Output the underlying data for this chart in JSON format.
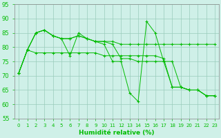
{
  "xlabel": "Humidité relative (%)",
  "xlim": [
    -0.5,
    23.5
  ],
  "ylim": [
    55,
    95
  ],
  "yticks": [
    55,
    60,
    65,
    70,
    75,
    80,
    85,
    90,
    95
  ],
  "xticks": [
    0,
    1,
    2,
    3,
    4,
    5,
    6,
    7,
    8,
    9,
    10,
    11,
    12,
    13,
    14,
    15,
    16,
    17,
    18,
    19,
    20,
    21,
    22,
    23
  ],
  "bg_color": "#cff0e8",
  "grid_color": "#99ccbb",
  "line_color": "#00bb00",
  "lines": [
    {
      "x": [
        0,
        1,
        2,
        3,
        4,
        5,
        6,
        7,
        8,
        9,
        10,
        11,
        12,
        13,
        14,
        15,
        16,
        17,
        18,
        19,
        20,
        21,
        22,
        23
      ],
      "y": [
        71,
        79,
        85,
        86,
        84,
        83,
        77,
        85,
        83,
        82,
        81,
        75,
        75,
        64,
        61,
        89,
        85,
        75,
        66,
        66,
        65,
        65,
        63,
        63
      ]
    },
    {
      "x": [
        0,
        1,
        2,
        3,
        4,
        5,
        6,
        7,
        8,
        9,
        10,
        11,
        12,
        13,
        14,
        15,
        16,
        17,
        18,
        19,
        20,
        21,
        22,
        23
      ],
      "y": [
        71,
        79,
        85,
        86,
        84,
        83,
        83,
        84,
        83,
        82,
        82,
        81,
        76,
        76,
        75,
        75,
        75,
        75,
        75,
        66,
        65,
        65,
        63,
        63
      ]
    },
    {
      "x": [
        0,
        1,
        2,
        3,
        4,
        5,
        6,
        7,
        8,
        9,
        10,
        11,
        12,
        13,
        14,
        15,
        16,
        17,
        18,
        19,
        20,
        21,
        22,
        23
      ],
      "y": [
        71,
        79,
        85,
        86,
        84,
        83,
        83,
        84,
        83,
        82,
        82,
        82,
        81,
        81,
        81,
        81,
        81,
        81,
        81,
        81,
        81,
        81,
        81,
        81
      ]
    },
    {
      "x": [
        0,
        1,
        2,
        3,
        4,
        5,
        6,
        7,
        8,
        9,
        10,
        11,
        12,
        13,
        14,
        15,
        16,
        17,
        18,
        19,
        20,
        21,
        22,
        23
      ],
      "y": [
        71,
        79,
        78,
        78,
        78,
        78,
        78,
        78,
        78,
        78,
        77,
        77,
        77,
        77,
        77,
        77,
        77,
        76,
        66,
        66,
        65,
        65,
        63,
        63
      ]
    }
  ]
}
